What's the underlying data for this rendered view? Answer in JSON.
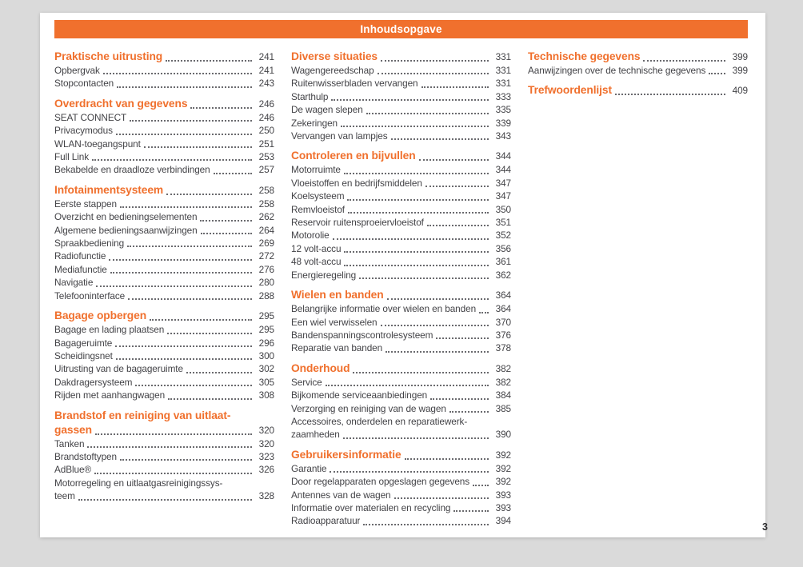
{
  "header": {
    "title": "Inhoudsopgave"
  },
  "page_number": "3",
  "colors": {
    "accent": "#f0702d",
    "text": "#434347",
    "dots": "#6a6a6e",
    "page_background": "#ffffff",
    "canvas_background": "#dadada"
  },
  "columns": [
    {
      "sections": [
        {
          "title": "Praktische uitrusting",
          "page": "241",
          "entries": [
            {
              "label": "Opbergvak",
              "page": "241"
            },
            {
              "label": "Stopcontacten",
              "page": "243"
            }
          ]
        },
        {
          "title": "Overdracht van gegevens",
          "page": "246",
          "entries": [
            {
              "label": "SEAT CONNECT",
              "page": "246"
            },
            {
              "label": "Privacymodus",
              "page": "250"
            },
            {
              "label": "WLAN-toegangspunt",
              "page": "251"
            },
            {
              "label": "Full Link",
              "page": "253"
            },
            {
              "label": "Bekabelde en draadloze verbindingen",
              "page": "257"
            }
          ]
        },
        {
          "title": "Infotainmentsysteem",
          "page": "258",
          "entries": [
            {
              "label": "Eerste stappen",
              "page": "258"
            },
            {
              "label": "Overzicht en bedieningselementen",
              "page": "262"
            },
            {
              "label": "Algemene bedieningsaanwijzingen",
              "page": "264"
            },
            {
              "label": "Spraakbediening",
              "page": "269"
            },
            {
              "label": "Radiofunctie",
              "page": "272"
            },
            {
              "label": "Mediafunctie",
              "page": "276"
            },
            {
              "label": "Navigatie",
              "page": "280"
            },
            {
              "label": "Telefooninterface",
              "page": "288"
            }
          ]
        },
        {
          "title": "Bagage opbergen",
          "page": "295",
          "entries": [
            {
              "label": "Bagage en lading plaatsen",
              "page": "295"
            },
            {
              "label": "Bagageruimte",
              "page": "296"
            },
            {
              "label": "Scheidingsnet",
              "page": "300"
            },
            {
              "label": "Uitrusting van de bagageruimte",
              "page": "302"
            },
            {
              "label": "Dakdragersysteem",
              "page": "305"
            },
            {
              "label": "Rijden met aanhangwagen",
              "page": "308"
            }
          ]
        },
        {
          "title": "Brandstof en reiniging van uitlaat-",
          "title2": "gassen",
          "page": "320",
          "entries": [
            {
              "label": "Tanken",
              "page": "320"
            },
            {
              "label": "Brandstoftypen",
              "page": "323"
            },
            {
              "label": "AdBlue®",
              "page": "326"
            },
            {
              "pre": "Motorregeling en uitlaatgasreinigingssys-",
              "label": "teem",
              "page": "328"
            }
          ]
        }
      ]
    },
    {
      "sections": [
        {
          "title": "Diverse situaties",
          "page": "331",
          "entries": [
            {
              "label": "Wagengereedschap",
              "page": "331"
            },
            {
              "label": "Ruitenwisserbladen vervangen",
              "page": "331"
            },
            {
              "label": "Starthulp",
              "page": "333"
            },
            {
              "label": "De wagen slepen",
              "page": "335"
            },
            {
              "label": "Zekeringen",
              "page": "339"
            },
            {
              "label": "Vervangen van lampjes",
              "page": "343"
            }
          ]
        },
        {
          "title": "Controleren en bijvullen",
          "page": "344",
          "entries": [
            {
              "label": "Motorruimte",
              "page": "344"
            },
            {
              "label": "Vloeistoffen en bedrijfsmiddelen",
              "page": "347"
            },
            {
              "label": "Koelsysteem",
              "page": "347"
            },
            {
              "label": "Remvloeistof",
              "page": "350"
            },
            {
              "label": "Reservoir ruitensproeiervloeistof",
              "page": "351"
            },
            {
              "label": "Motorolie",
              "page": "352"
            },
            {
              "label": "12 volt-accu",
              "page": "356"
            },
            {
              "label": "48 volt-accu",
              "page": "361"
            },
            {
              "label": "Energieregeling",
              "page": "362"
            }
          ]
        },
        {
          "title": "Wielen en banden",
          "page": "364",
          "entries": [
            {
              "label": "Belangrijke informatie over wielen en banden",
              "page": "364"
            },
            {
              "label": "Een wiel verwisselen",
              "page": "370"
            },
            {
              "label": "Bandenspanningscontrolesysteem",
              "page": "376"
            },
            {
              "label": "Reparatie van banden",
              "page": "378"
            }
          ]
        },
        {
          "title": "Onderhoud",
          "page": "382",
          "entries": [
            {
              "label": "Service",
              "page": "382"
            },
            {
              "label": "Bijkomende serviceaanbiedingen",
              "page": "384"
            },
            {
              "label": "Verzorging en reiniging van de wagen",
              "page": "385"
            },
            {
              "pre": "Accessoires, onderdelen en reparatiewerk-",
              "label": "zaamheden",
              "page": "390"
            }
          ]
        },
        {
          "title": "Gebruikersinformatie",
          "page": "392",
          "entries": [
            {
              "label": "Garantie",
              "page": "392"
            },
            {
              "label": "Door regelapparaten opgeslagen gegevens",
              "page": "392"
            },
            {
              "label": "Antennes van de wagen",
              "page": "393"
            },
            {
              "label": "Informatie over materialen en recycling",
              "page": "393"
            },
            {
              "label": "Radioapparatuur",
              "page": "394"
            }
          ]
        }
      ]
    },
    {
      "sections": [
        {
          "title": "Technische gegevens",
          "page": "399",
          "entries": [
            {
              "label": "Aanwijzingen over de technische gegevens",
              "page": "399"
            }
          ]
        },
        {
          "title": "Trefwoordenlijst",
          "page": "409",
          "entries": []
        }
      ]
    }
  ]
}
